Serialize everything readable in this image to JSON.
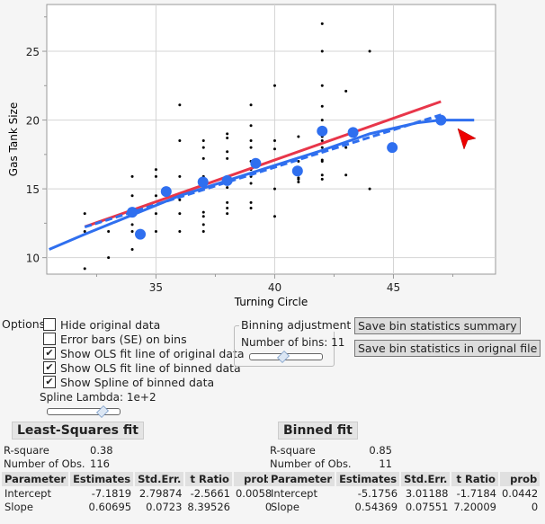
{
  "chart_data": {
    "type": "scatter",
    "xlabel": "Turning Circle",
    "ylabel": "Gas Tank Size",
    "xlim": [
      30.4,
      49.3
    ],
    "ylim": [
      8.8,
      28.4
    ],
    "xticks": [
      35,
      40,
      45
    ],
    "yticks": [
      10,
      15,
      20,
      25
    ],
    "grid": true,
    "colors": {
      "points": "#000000",
      "bins": "#2f6fef",
      "ols_original": "#e8364a",
      "ols_binned": "#2f6fef",
      "spline": "#2f6fef"
    },
    "original_points": [
      [
        32,
        13.2
      ],
      [
        32,
        11.9
      ],
      [
        32,
        9.2
      ],
      [
        33,
        11.9
      ],
      [
        33,
        10.0
      ],
      [
        34,
        15.9
      ],
      [
        34,
        14.5
      ],
      [
        34,
        12.4
      ],
      [
        34,
        11.9
      ],
      [
        34,
        10.6
      ],
      [
        35,
        16.4
      ],
      [
        35,
        15.9
      ],
      [
        35,
        14.5
      ],
      [
        35,
        13.2
      ],
      [
        35,
        11.9
      ],
      [
        36,
        21.1
      ],
      [
        36,
        18.5
      ],
      [
        36,
        15.9
      ],
      [
        36,
        14.5
      ],
      [
        36,
        14.2
      ],
      [
        36,
        13.2
      ],
      [
        36,
        11.9
      ],
      [
        37,
        18.5
      ],
      [
        37,
        18.0
      ],
      [
        37,
        17.2
      ],
      [
        37,
        15.9
      ],
      [
        37,
        13.3
      ],
      [
        37,
        13.0
      ],
      [
        37,
        12.4
      ],
      [
        37,
        11.9
      ],
      [
        38,
        19.0
      ],
      [
        38,
        18.7
      ],
      [
        38,
        17.7
      ],
      [
        38,
        17.2
      ],
      [
        38,
        15.9
      ],
      [
        38,
        15.1
      ],
      [
        38,
        14.0
      ],
      [
        38,
        13.6
      ],
      [
        38,
        13.2
      ],
      [
        39,
        21.1
      ],
      [
        39,
        19.6
      ],
      [
        39,
        18.5
      ],
      [
        39,
        18.0
      ],
      [
        39,
        17.0
      ],
      [
        39,
        16.4
      ],
      [
        39,
        15.9
      ],
      [
        39,
        15.4
      ],
      [
        39,
        14.0
      ],
      [
        39,
        13.6
      ],
      [
        40,
        22.5
      ],
      [
        40,
        18.5
      ],
      [
        40,
        17.9
      ],
      [
        40,
        15.0
      ],
      [
        40,
        13.0
      ],
      [
        41,
        18.8
      ],
      [
        41,
        17.0
      ],
      [
        41,
        15.8
      ],
      [
        41,
        15.7
      ],
      [
        41,
        15.5
      ],
      [
        42,
        27.0
      ],
      [
        42,
        25.0
      ],
      [
        42,
        22.5
      ],
      [
        42,
        21.0
      ],
      [
        42,
        20.0
      ],
      [
        42,
        18.8
      ],
      [
        42,
        18.5
      ],
      [
        42,
        18.0
      ],
      [
        42,
        17.1
      ],
      [
        42,
        17.0
      ],
      [
        42,
        16.0
      ],
      [
        42,
        15.7
      ],
      [
        43,
        22.1
      ],
      [
        43,
        18.0
      ],
      [
        43,
        16.0
      ],
      [
        44,
        25.0
      ],
      [
        44,
        15.0
      ]
    ],
    "bin_points": [
      [
        34.0,
        13.3
      ],
      [
        34.34,
        11.7
      ],
      [
        35.43,
        14.8
      ],
      [
        36.98,
        15.5
      ],
      [
        38.0,
        15.6
      ],
      [
        39.2,
        16.85
      ],
      [
        40.96,
        16.3
      ],
      [
        42.0,
        19.2
      ],
      [
        43.3,
        19.1
      ],
      [
        44.95,
        18.0
      ],
      [
        47.0,
        20.0
      ]
    ],
    "ols_original": {
      "intercept": -7.1819,
      "slope": 0.60695,
      "x_range": [
        32,
        47
      ]
    },
    "ols_binned": {
      "intercept": -5.1756,
      "slope": 0.54369,
      "x_range": [
        32,
        47
      ]
    },
    "spline": [
      [
        30.5,
        10.6
      ],
      [
        32,
        11.7
      ],
      [
        34,
        13.1
      ],
      [
        36,
        14.5
      ],
      [
        38,
        15.6
      ],
      [
        40,
        16.7
      ],
      [
        42,
        17.8
      ],
      [
        44,
        19.0
      ],
      [
        46,
        19.8
      ],
      [
        47,
        20.0
      ],
      [
        48.4,
        20.0
      ]
    ]
  },
  "options": {
    "label": "Options",
    "checkboxes": [
      {
        "label": "Hide original data",
        "checked": false
      },
      {
        "label": "Error bars (SE) on bins",
        "checked": false
      },
      {
        "label": "Show OLS fit line of original data",
        "checked": true
      },
      {
        "label": "Show OLS fit line of binned data",
        "checked": true
      },
      {
        "label": "Show Spline of binned data",
        "checked": true
      }
    ],
    "spline_lambda": "Spline Lambda: 1e+2",
    "spline_lambda_slider": 0.75
  },
  "binning": {
    "title": "Binning adjustment",
    "bins_label": "Number of bins: 11",
    "bins_slider": 0.45
  },
  "buttons": {
    "save_summary": "Save bin statistics summary",
    "save_original": "Save bin statistics in orignal file"
  },
  "ls_fit": {
    "title": "Least-Squares fit",
    "rsquare_label": "R-square",
    "rsquare": "0.38",
    "nobs_label": "Number of Obs.",
    "nobs": "116",
    "headers": [
      "Parameter",
      "Estimates",
      "Std.Err.",
      "t Ratio",
      "prob"
    ],
    "rows": [
      [
        "Intercept",
        "-7.1819",
        "2.79874",
        "-2.5661",
        "0.0058"
      ],
      [
        "Slope",
        "0.60695",
        "0.0723",
        "8.39526",
        "0"
      ]
    ]
  },
  "binned_fit": {
    "title": "Binned fit",
    "rsquare_label": "R-square",
    "rsquare": "0.85",
    "nobs_label": "Number of Obs.",
    "nobs": "11",
    "headers": [
      "Parameter",
      "Estimates",
      "Std.Err.",
      "t Ratio",
      "prob"
    ],
    "rows": [
      [
        "Intercept",
        "-5.1756",
        "3.01188",
        "-1.7184",
        "0.0442"
      ],
      [
        "Slope",
        "0.54369",
        "0.07551",
        "7.20009",
        "0"
      ]
    ]
  }
}
